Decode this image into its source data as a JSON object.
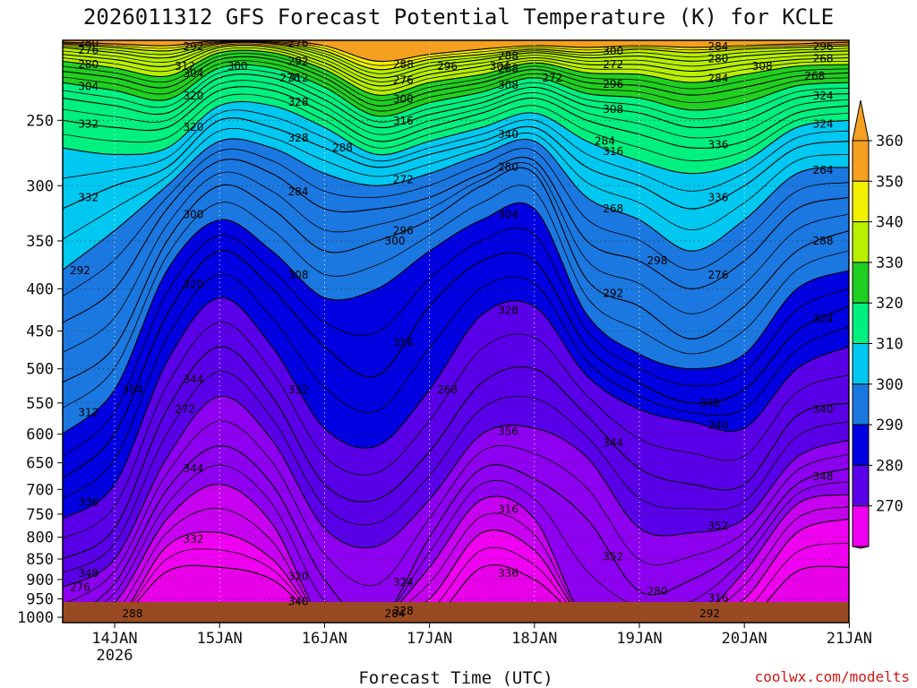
{
  "chart_data": {
    "type": "contour",
    "title": "2026011312 GFS Forecast Potential Temperature (K) for KCLE",
    "xlabel": "Forecast Time (UTC)",
    "ylabel": "",
    "x_ticks": [
      "14JAN",
      "15JAN",
      "16JAN",
      "17JAN",
      "18JAN",
      "19JAN",
      "20JAN",
      "21JAN"
    ],
    "x_year_label": "2026",
    "y_ticks": [
      250,
      300,
      350,
      400,
      450,
      500,
      550,
      600,
      650,
      700,
      750,
      800,
      850,
      900,
      950,
      1000
    ],
    "ylim": [
      200,
      1015
    ],
    "x": [
      0,
      0.5,
      1,
      1.5,
      2,
      2.5,
      3,
      3.5,
      4,
      4.5,
      5,
      5.5,
      6,
      6.5,
      7,
      7.5
    ],
    "isentrope_levels_K": [
      268,
      272,
      276,
      280,
      284,
      288,
      292,
      296,
      300,
      304,
      308,
      312,
      316,
      320,
      324,
      328,
      332,
      336,
      340,
      344,
      348,
      352,
      356
    ],
    "isentrope_pressure_hPa": {
      "268": [
        1015,
        1015,
        880,
        870,
        900,
        1015,
        1015,
        1015,
        870,
        900,
        1015,
        1015,
        1015,
        1015,
        880,
        870
      ],
      "272": [
        1015,
        1015,
        820,
        790,
        850,
        1015,
        1015,
        950,
        790,
        830,
        1015,
        1015,
        1015,
        950,
        790,
        760
      ],
      "276": [
        1015,
        960,
        760,
        690,
        770,
        1015,
        1015,
        870,
        720,
        760,
        1015,
        1015,
        1015,
        880,
        730,
        710
      ],
      "280": [
        1015,
        910,
        700,
        620,
        690,
        900,
        1015,
        800,
        660,
        680,
        760,
        930,
        900,
        820,
        690,
        660
      ],
      "284": [
        920,
        850,
        640,
        540,
        610,
        780,
        820,
        720,
        600,
        590,
        640,
        780,
        790,
        760,
        640,
        610
      ],
      "288": [
        850,
        780,
        560,
        470,
        540,
        690,
        720,
        630,
        520,
        500,
        570,
        660,
        690,
        690,
        570,
        550
      ],
      "292": [
        760,
        690,
        490,
        410,
        470,
        590,
        620,
        530,
        430,
        420,
        510,
        560,
        580,
        590,
        500,
        470
      ],
      "296": [
        680,
        600,
        430,
        360,
        400,
        470,
        510,
        420,
        370,
        370,
        470,
        520,
        550,
        530,
        450,
        420
      ],
      "300": [
        600,
        530,
        380,
        330,
        360,
        410,
        400,
        360,
        330,
        320,
        430,
        480,
        500,
        480,
        400,
        380
      ],
      "304": [
        520,
        470,
        350,
        300,
        320,
        360,
        350,
        330,
        300,
        290,
        390,
        420,
        460,
        420,
        360,
        340
      ],
      "308": [
        440,
        400,
        320,
        280,
        290,
        320,
        320,
        310,
        290,
        280,
        350,
        370,
        400,
        370,
        320,
        310
      ],
      "312": [
        380,
        340,
        300,
        265,
        270,
        290,
        300,
        290,
        275,
        265,
        310,
        330,
        360,
        330,
        290,
        285
      ],
      "316": [
        320,
        300,
        285,
        250,
        255,
        270,
        285,
        275,
        265,
        255,
        285,
        300,
        320,
        300,
        270,
        265
      ],
      "320": [
        270,
        275,
        270,
        240,
        240,
        255,
        275,
        265,
        255,
        245,
        265,
        280,
        290,
        280,
        255,
        250
      ],
      "324": [
        250,
        255,
        255,
        230,
        230,
        245,
        265,
        255,
        245,
        235,
        250,
        260,
        270,
        265,
        245,
        240
      ],
      "328": [
        235,
        240,
        245,
        222,
        222,
        236,
        255,
        246,
        238,
        228,
        240,
        245,
        255,
        250,
        235,
        232
      ],
      "332": [
        225,
        230,
        236,
        216,
        216,
        228,
        247,
        238,
        231,
        222,
        232,
        235,
        243,
        238,
        227,
        225
      ],
      "336": [
        218,
        222,
        228,
        211,
        211,
        222,
        240,
        231,
        225,
        217,
        225,
        227,
        233,
        228,
        221,
        219
      ],
      "340": [
        212,
        216,
        221,
        207,
        207,
        217,
        233,
        225,
        220,
        213,
        219,
        220,
        225,
        220,
        215,
        214
      ],
      "344": [
        208,
        211,
        215,
        204,
        204,
        213,
        227,
        220,
        215,
        210,
        214,
        214,
        218,
        214,
        211,
        210
      ],
      "348": [
        204,
        207,
        210,
        202,
        202,
        209,
        222,
        215,
        211,
        207,
        210,
        209,
        212,
        209,
        207,
        206
      ],
      "352": [
        202,
        204,
        206,
        201,
        201,
        206,
        217,
        211,
        208,
        205,
        207,
        205,
        207,
        205,
        204,
        203
      ],
      "356": [
        201,
        202,
        203,
        200,
        200,
        203,
        212,
        208,
        205,
        203,
        204,
        203,
        204,
        203,
        202,
        201
      ]
    },
    "contour_labels": [
      "340",
      "336",
      "332",
      "328",
      "320",
      "316",
      "316",
      "324",
      "352",
      "348",
      "344",
      "356",
      "352",
      "348",
      "344",
      "340",
      "344",
      "340",
      "336",
      "332",
      "328",
      "324",
      "320",
      "316",
      "312",
      "308",
      "304",
      "300",
      "296",
      "292",
      "288",
      "284",
      "280",
      "276",
      "272",
      "268",
      "264",
      "340",
      "336",
      "332",
      "328",
      "316",
      "324",
      "320",
      "336",
      "332",
      "328",
      "324",
      "320",
      "316",
      "308",
      "304",
      "312",
      "308",
      "304",
      "300",
      "296",
      "292",
      "288",
      "284",
      "280",
      "276",
      "272",
      "268",
      "288",
      "280",
      "276",
      "300",
      "296",
      "292",
      "288",
      "284",
      "280",
      "276",
      "272",
      "268",
      "308",
      "304",
      "300",
      "298",
      "292",
      "288",
      "284",
      "280",
      "276",
      "272",
      "268",
      "300",
      "304",
      "308",
      "312",
      "296",
      "292",
      "288",
      "284",
      "280",
      "276"
    ],
    "colorbar": {
      "labels": [
        "360",
        "350",
        "340",
        "330",
        "320",
        "310",
        "300",
        "290",
        "280",
        "270"
      ],
      "colors": [
        "#f5a020",
        "#f0f000",
        "#b8f000",
        "#20d020",
        "#00f080",
        "#00c8f0",
        "#1a78e0",
        "#0000e0",
        "#5a00e8",
        "#8e00f0",
        "#c800f0",
        "#f000f0"
      ],
      "extend": "both"
    },
    "credit": "coolwx.com/modelts"
  }
}
